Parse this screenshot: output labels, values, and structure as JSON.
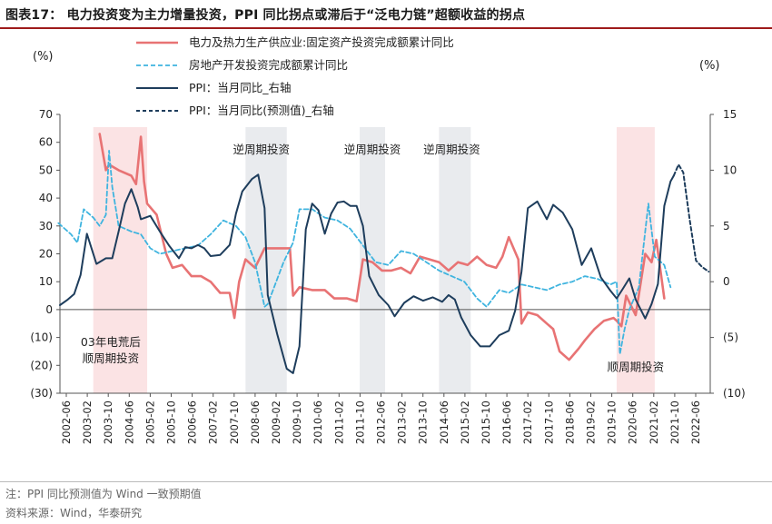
{
  "title": "图表17：  电力投资变为主力增量投资，PPI 同比拐点或滞后于“泛电力链”超额收益的拐点",
  "footer": {
    "note": "注：PPI 同比预测值为 Wind 一致预期值",
    "source": "资料来源：Wind，华泰研究"
  },
  "colors": {
    "power": "#e87374",
    "realestate": "#3fb4df",
    "ppi": "#1e3d5c",
    "ppi_forecast": "#1e3d5c",
    "shade_pink": "#fbe3e4",
    "shade_gray": "#e9ebee"
  },
  "chart_data": {
    "type": "line",
    "title": "电力投资变为主力增量投资，PPI 同比拐点或滞后于“泛电力链”超额收益的拐点",
    "y_left": {
      "label": "(%)",
      "range": [
        -30,
        70
      ],
      "ticks": [
        70,
        60,
        50,
        40,
        30,
        20,
        10,
        0,
        -10,
        -20,
        -30
      ],
      "tick_labels": [
        "70",
        "60",
        "50",
        "40",
        "30",
        "20",
        "10",
        "0",
        "(10)",
        "(20)",
        "(30)"
      ]
    },
    "y_right": {
      "label": "(%)",
      "range": [
        -10,
        15
      ],
      "inverted": true,
      "ticks": [
        15,
        10,
        5,
        0,
        -5,
        -10
      ],
      "tick_labels": [
        "15",
        "10",
        "5",
        "0",
        "(5)",
        "(10)"
      ]
    },
    "x_tick_labels": [
      "2002-06",
      "2003-02",
      "2003-10",
      "2004-06",
      "2005-02",
      "2005-10",
      "2006-06",
      "2007-02",
      "2007-10",
      "2008-06",
      "2009-02",
      "2009-10",
      "2010-06",
      "2011-02",
      "2011-10",
      "2012-06",
      "2013-02",
      "2013-10",
      "2014-06",
      "2015-02",
      "2015-10",
      "2016-06",
      "2017-02",
      "2017-10",
      "2018-06",
      "2019-02",
      "2019-10",
      "2020-06",
      "2021-02",
      "2021-10",
      "2022-06"
    ],
    "legend": [
      {
        "key": "power",
        "label": "电力及热力生产供应业:固定资产投资完成额累计同比",
        "style": "solid"
      },
      {
        "key": "realestate",
        "label": "房地产开发投资完成额累计同比",
        "style": "dashed"
      },
      {
        "key": "ppi",
        "label": "PPI：当月同比_右轴",
        "style": "solid"
      },
      {
        "key": "ppi_forecast",
        "label": "PPI：当月同比(预测值)_右轴",
        "style": "dashed"
      }
    ],
    "shaded_periods": [
      {
        "start": 2003.5,
        "end": 2005.2,
        "color": "pink"
      },
      {
        "start": 2008.3,
        "end": 2009.6,
        "color": "gray"
      },
      {
        "start": 2011.9,
        "end": 2012.7,
        "color": "gray"
      },
      {
        "start": 2014.4,
        "end": 2015.4,
        "color": "gray"
      },
      {
        "start": 2020.0,
        "end": 2021.2,
        "color": "pink"
      }
    ],
    "annotations": [
      {
        "text": "逆周期投资",
        "x": 2008.8,
        "y": 56
      },
      {
        "text": "逆周期投资",
        "x": 2012.3,
        "y": 56
      },
      {
        "text": "逆周期投资",
        "x": 2014.8,
        "y": 56
      },
      {
        "text": "03年电荒后",
        "x": 2004.05,
        "y": -13
      },
      {
        "text": "顺周期投资",
        "x": 2004.05,
        "y": -19
      },
      {
        "text": "顺周期投资",
        "x": 2020.6,
        "y": -22
      }
    ],
    "series": [
      {
        "key": "power",
        "name": "电力及热力生产供应业:固定资产投资完成额累计同比",
        "axis": "left",
        "x": [
          2003.7,
          2003.9,
          2004.0,
          2004.3,
          2004.7,
          2004.85,
          2005.0,
          2005.1,
          2005.2,
          2005.5,
          2005.8,
          2006.0,
          2006.3,
          2006.6,
          2006.9,
          2007.2,
          2007.5,
          2007.8,
          2007.95,
          2008.1,
          2008.3,
          2008.6,
          2008.9,
          2009.1,
          2009.4,
          2009.7,
          2009.8,
          2010.0,
          2010.4,
          2010.8,
          2011.1,
          2011.5,
          2011.8,
          2012.0,
          2012.3,
          2012.6,
          2012.9,
          2013.2,
          2013.5,
          2013.8,
          2014.1,
          2014.4,
          2014.7,
          2015.0,
          2015.3,
          2015.6,
          2015.9,
          2016.2,
          2016.4,
          2016.6,
          2016.9,
          2017.0,
          2017.2,
          2017.5,
          2017.8,
          2018.0,
          2018.2,
          2018.5,
          2018.8,
          2019.0,
          2019.3,
          2019.6,
          2019.9,
          2020.0,
          2020.15,
          2020.3,
          2020.6,
          2020.9,
          2021.1,
          2021.25,
          2021.5
        ],
        "y": [
          63,
          50,
          52,
          50,
          48,
          45,
          62,
          46,
          38,
          34,
          20,
          15,
          16,
          12,
          12,
          10,
          6,
          6,
          -3,
          10,
          18,
          15,
          22,
          22,
          22,
          22,
          5,
          8,
          7,
          7,
          4,
          4,
          3,
          18,
          17,
          14,
          14,
          15,
          13,
          19,
          18,
          17,
          14,
          17,
          16,
          19,
          16,
          15,
          19,
          26,
          18,
          -5,
          -1,
          -2,
          -5,
          -7,
          -15,
          -18,
          -14,
          -11,
          -7,
          -4,
          -3,
          -4,
          -6,
          5,
          -2,
          20,
          17,
          25,
          4
        ]
      },
      {
        "key": "realestate",
        "name": "房地产开发投资完成额累计同比",
        "axis": "left",
        "x": [
          2002.4,
          2002.8,
          2003.0,
          2003.2,
          2003.5,
          2003.7,
          2003.9,
          2004.0,
          2004.1,
          2004.3,
          2004.7,
          2005.0,
          2005.3,
          2005.6,
          2006.0,
          2006.4,
          2006.8,
          2007.2,
          2007.6,
          2008.0,
          2008.3,
          2008.6,
          2008.9,
          2009.0,
          2009.2,
          2009.5,
          2009.8,
          2010.0,
          2010.4,
          2010.8,
          2011.2,
          2011.6,
          2012.0,
          2012.4,
          2012.8,
          2013.2,
          2013.6,
          2014.0,
          2014.4,
          2014.8,
          2015.2,
          2015.6,
          2015.9,
          2016.3,
          2016.6,
          2017.0,
          2017.4,
          2017.8,
          2018.2,
          2018.6,
          2019.0,
          2019.4,
          2019.8,
          2020.0,
          2020.1,
          2020.25,
          2020.4,
          2020.7,
          2021.0,
          2021.2,
          2021.5,
          2021.7
        ],
        "y": [
          31,
          27,
          24,
          36,
          33,
          30,
          34,
          57,
          44,
          30,
          28,
          27,
          22,
          20,
          21,
          22,
          23,
          27,
          32,
          30,
          26,
          17,
          1,
          2,
          8,
          17,
          24,
          36,
          36,
          33,
          32,
          29,
          23,
          17,
          16,
          21,
          20,
          17,
          14,
          12,
          10,
          4,
          1,
          7,
          6,
          9,
          8,
          7,
          9,
          10,
          12,
          11,
          9,
          10,
          -16,
          -7,
          0,
          8,
          38,
          19,
          16,
          8
        ]
      },
      {
        "key": "ppi",
        "name": "PPI：当月同比_右轴",
        "axis": "right",
        "x": [
          2002.45,
          2002.7,
          2002.9,
          2003.1,
          2003.3,
          2003.6,
          2003.9,
          2004.1,
          2004.3,
          2004.5,
          2004.7,
          2004.9,
          2005.0,
          2005.3,
          2005.6,
          2005.9,
          2006.2,
          2006.4,
          2006.6,
          2006.8,
          2007.0,
          2007.2,
          2007.5,
          2007.8,
          2008.0,
          2008.2,
          2008.5,
          2008.7,
          2008.9,
          2009.0,
          2009.3,
          2009.6,
          2009.8,
          2010.0,
          2010.2,
          2010.4,
          2010.6,
          2010.8,
          2011.0,
          2011.2,
          2011.4,
          2011.6,
          2011.8,
          2012.0,
          2012.2,
          2012.5,
          2012.8,
          2013.0,
          2013.3,
          2013.6,
          2013.9,
          2014.2,
          2014.5,
          2014.7,
          2014.9,
          2015.1,
          2015.4,
          2015.7,
          2016.0,
          2016.3,
          2016.6,
          2016.8,
          2017.0,
          2017.2,
          2017.5,
          2017.8,
          2018.0,
          2018.3,
          2018.6,
          2018.9,
          2019.2,
          2019.5,
          2019.8,
          2020.0,
          2020.2,
          2020.4,
          2020.6,
          2020.9,
          2021.1,
          2021.3,
          2021.5,
          2021.7,
          2021.8
        ],
        "y": [
          -2.1,
          -1.6,
          -1.1,
          0.6,
          4.3,
          1.6,
          2.1,
          2.1,
          4.5,
          7.0,
          8.3,
          6.7,
          5.6,
          5.9,
          4.5,
          3.2,
          2.1,
          3.1,
          3.0,
          3.3,
          3.0,
          2.3,
          2.4,
          3.3,
          6.1,
          8.1,
          9.2,
          9.6,
          6.6,
          -1.2,
          -4.7,
          -7.8,
          -8.2,
          -5.8,
          4.7,
          7.0,
          6.4,
          4.3,
          6.1,
          7.1,
          7.2,
          6.8,
          6.8,
          5.0,
          0.5,
          -1.2,
          -2.1,
          -3.1,
          -1.9,
          -1.3,
          -1.7,
          -1.4,
          -1.8,
          -1.2,
          -1.6,
          -3.2,
          -4.8,
          -5.8,
          -5.8,
          -4.8,
          -4.4,
          -2.6,
          0.9,
          6.6,
          7.2,
          5.6,
          6.9,
          6.2,
          4.7,
          1.5,
          3.0,
          0.4,
          -0.8,
          -1.5,
          -0.6,
          0.3,
          -1.6,
          -3.3,
          -2.0,
          -0.2,
          6.8,
          9.0,
          9.5
        ]
      },
      {
        "key": "ppi_forecast",
        "name": "PPI：当月同比(预测值)_右轴",
        "axis": "right",
        "x": [
          2021.8,
          2021.95,
          2022.1,
          2022.3,
          2022.5,
          2022.7,
          2022.9
        ],
        "y": [
          9.5,
          10.5,
          9.8,
          5.6,
          1.9,
          1.3,
          0.9
        ]
      }
    ]
  }
}
